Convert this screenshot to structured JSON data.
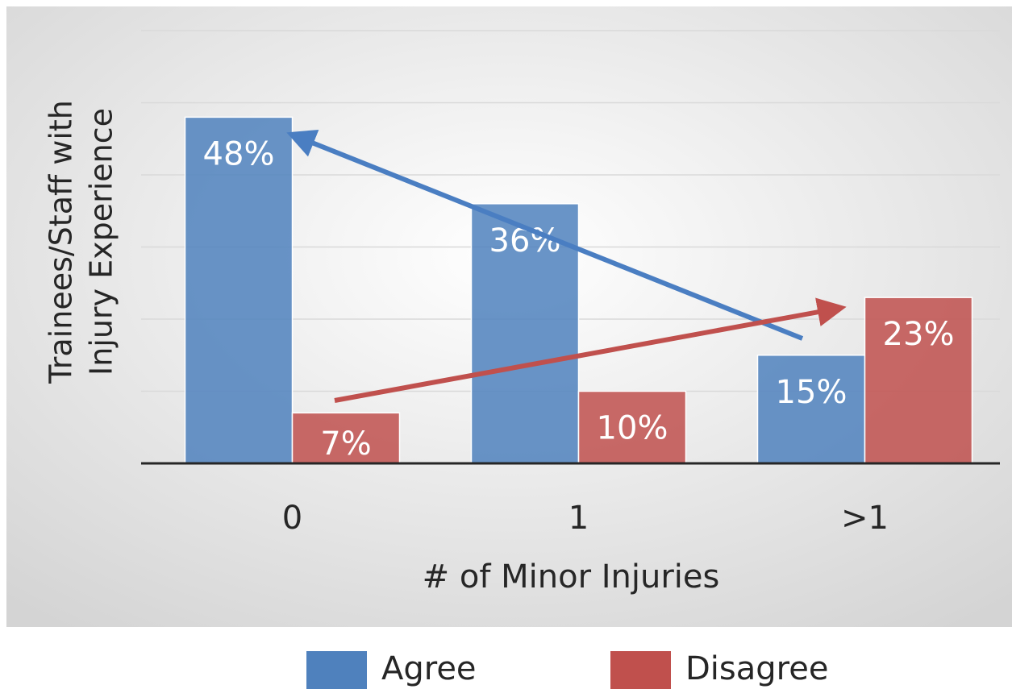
{
  "chart_data": {
    "type": "bar",
    "categories": [
      "0",
      "1",
      ">1"
    ],
    "xlabel": "# of Minor Injuries",
    "ylabel": [
      "Trainees/Staff with",
      "Injury Experience"
    ],
    "series": [
      {
        "name": "Agree",
        "color": "#4f81bd",
        "values": [
          48,
          36,
          15
        ],
        "value_labels": [
          "48%",
          "36%",
          "15%"
        ]
      },
      {
        "name": "Disagree",
        "color": "#c0504d",
        "values": [
          7,
          10,
          23
        ],
        "value_labels": [
          "7%",
          "10%",
          "23%"
        ]
      }
    ],
    "ylim": [
      0,
      60
    ],
    "yticks": [
      0,
      10,
      20,
      30,
      40,
      50,
      60
    ],
    "grid": true,
    "legend": "bottom"
  }
}
